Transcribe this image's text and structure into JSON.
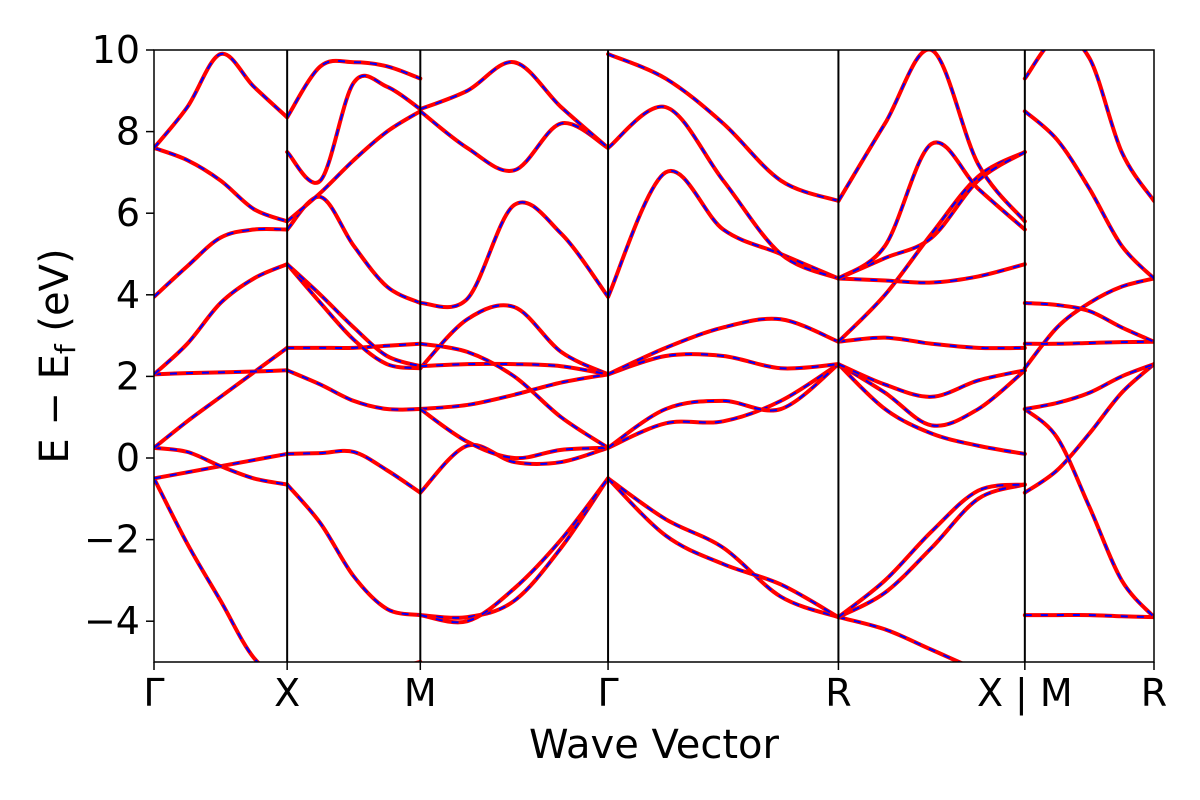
{
  "chart_data": {
    "type": "line",
    "title": "",
    "xlabel": "Wave Vector",
    "ylabel": "E − E",
    "ylabel_subscript": "f",
    "ylabel_unit": " (eV)",
    "ylim": [
      -5,
      10
    ],
    "yticks": [
      -4,
      -2,
      0,
      2,
      4,
      6,
      8,
      10
    ],
    "ytick_labels": [
      "−4",
      "−2",
      "0",
      "2",
      "4",
      "6",
      "8",
      "10"
    ],
    "xlim": [
      0,
      7.51
    ],
    "kpoints": [
      {
        "label": "Γ",
        "x": 0
      },
      {
        "label": "X",
        "x": 1
      },
      {
        "label": "M",
        "x": 2
      },
      {
        "label": "Γ",
        "x": 3.41
      },
      {
        "label": "R",
        "x": 5.14
      },
      {
        "label": "X | M",
        "x": 6.54
      },
      {
        "label": "R",
        "x": 7.51
      }
    ],
    "grid": false,
    "legend": "none",
    "colors": {
      "band_primary": "#ff0000",
      "band_overlay": "#0000ff"
    },
    "segments": [
      {
        "from": "Γ",
        "to": "X",
        "bands": [
          [
            -0.5,
            -2.1,
            -3.5,
            -4.9,
            -5.5
          ],
          [
            -0.5,
            -0.35,
            -0.2,
            -0.05,
            0.1
          ],
          [
            0.25,
            0.15,
            -0.2,
            -0.5,
            -0.65
          ],
          [
            0.25,
            0.9,
            1.5,
            2.1,
            2.7
          ],
          [
            2.05,
            2.08,
            2.1,
            2.12,
            2.15
          ],
          [
            2.05,
            2.8,
            3.8,
            4.4,
            4.75
          ],
          [
            3.95,
            4.7,
            5.4,
            5.6,
            5.6
          ],
          [
            7.6,
            7.3,
            6.8,
            6.1,
            5.8
          ],
          [
            7.6,
            8.6,
            9.9,
            9.1,
            8.35
          ]
        ]
      },
      {
        "from": "X",
        "to": "M",
        "bands": [
          [
            -5.5,
            -5.5,
            -5.4,
            -5.2,
            -5.0
          ],
          [
            -0.65,
            -1.6,
            -2.9,
            -3.7,
            -3.85
          ],
          [
            0.1,
            0.12,
            0.15,
            -0.3,
            -0.85
          ],
          [
            2.15,
            1.8,
            1.4,
            1.2,
            1.2
          ],
          [
            2.7,
            2.7,
            2.7,
            2.75,
            2.8
          ],
          [
            4.75,
            3.8,
            2.9,
            2.3,
            2.2
          ],
          [
            4.75,
            4.0,
            3.2,
            2.5,
            2.25
          ],
          [
            5.6,
            6.4,
            5.2,
            4.2,
            3.8
          ],
          [
            5.8,
            6.5,
            7.3,
            8.0,
            8.5
          ],
          [
            7.5,
            6.8,
            9.2,
            9.1,
            8.55
          ],
          [
            8.35,
            9.6,
            9.7,
            9.6,
            9.3
          ]
        ]
      },
      {
        "from": "M",
        "to": "Γ",
        "bands": [
          [
            -3.85,
            -3.9,
            -3.5,
            -2.2,
            -0.5
          ],
          [
            -3.85,
            -4.0,
            -3.2,
            -2.0,
            -0.5
          ],
          [
            -0.85,
            0.3,
            -0.1,
            -0.1,
            0.25
          ],
          [
            1.2,
            1.3,
            1.55,
            1.85,
            2.05
          ],
          [
            1.2,
            0.4,
            0.0,
            0.2,
            0.25
          ],
          [
            2.2,
            3.4,
            3.7,
            2.6,
            2.05
          ],
          [
            2.25,
            2.3,
            2.3,
            2.25,
            2.05
          ],
          [
            2.8,
            2.6,
            2.0,
            1.0,
            0.25
          ],
          [
            3.8,
            3.9,
            6.2,
            5.5,
            3.95
          ],
          [
            8.5,
            7.6,
            7.05,
            8.2,
            7.6
          ],
          [
            8.55,
            9.0,
            9.7,
            8.6,
            7.6
          ]
        ]
      },
      {
        "from": "Γ",
        "to": "R",
        "bands": [
          [
            -0.5,
            -1.5,
            -2.2,
            -3.4,
            -3.9
          ],
          [
            -0.5,
            -1.9,
            -2.6,
            -3.1,
            -3.9
          ],
          [
            0.25,
            0.85,
            0.9,
            1.4,
            2.3
          ],
          [
            0.25,
            1.2,
            1.4,
            1.2,
            2.3
          ],
          [
            2.05,
            2.5,
            2.5,
            2.2,
            2.3
          ],
          [
            2.05,
            2.7,
            3.2,
            3.4,
            2.85
          ],
          [
            3.95,
            7.0,
            5.6,
            5.0,
            4.4
          ],
          [
            7.6,
            8.6,
            6.8,
            5.0,
            4.4
          ],
          [
            9.9,
            9.3,
            8.2,
            6.8,
            6.3
          ]
        ]
      },
      {
        "from": "R",
        "to": "X",
        "bands": [
          [
            -3.9,
            -4.2,
            -4.7,
            -5.2,
            -5.6
          ],
          [
            -3.9,
            -3.3,
            -2.2,
            -1.0,
            -0.65
          ],
          [
            -3.9,
            -3.0,
            -1.8,
            -0.8,
            -0.65
          ],
          [
            2.3,
            1.2,
            0.6,
            0.3,
            0.1
          ],
          [
            2.3,
            1.6,
            0.8,
            1.2,
            2.15
          ],
          [
            2.3,
            1.8,
            1.5,
            1.9,
            2.15
          ],
          [
            2.85,
            2.95,
            2.8,
            2.7,
            2.7
          ],
          [
            2.85,
            4.0,
            5.5,
            6.9,
            7.5
          ],
          [
            4.4,
            4.35,
            4.3,
            4.45,
            4.75
          ],
          [
            4.4,
            4.9,
            5.4,
            6.8,
            7.5
          ],
          [
            4.4,
            5.2,
            7.7,
            6.6,
            5.6
          ],
          [
            6.3,
            8.2,
            10.0,
            7.2,
            5.8
          ]
        ]
      },
      {
        "from": "M",
        "to": "R",
        "bands": [
          [
            -3.85,
            -3.85,
            -3.85,
            -3.88,
            -3.9
          ],
          [
            -0.85,
            -0.3,
            0.6,
            1.6,
            2.3
          ],
          [
            1.2,
            0.5,
            -1.2,
            -3.0,
            -3.9
          ],
          [
            1.2,
            1.35,
            1.6,
            2.0,
            2.3
          ],
          [
            2.2,
            3.2,
            3.8,
            4.2,
            4.4
          ],
          [
            2.8,
            2.8,
            2.82,
            2.84,
            2.85
          ],
          [
            3.8,
            3.75,
            3.6,
            3.2,
            2.85
          ],
          [
            8.5,
            7.8,
            6.6,
            5.2,
            4.4
          ],
          [
            9.3,
            10.3,
            9.8,
            7.5,
            6.3
          ]
        ]
      }
    ]
  }
}
